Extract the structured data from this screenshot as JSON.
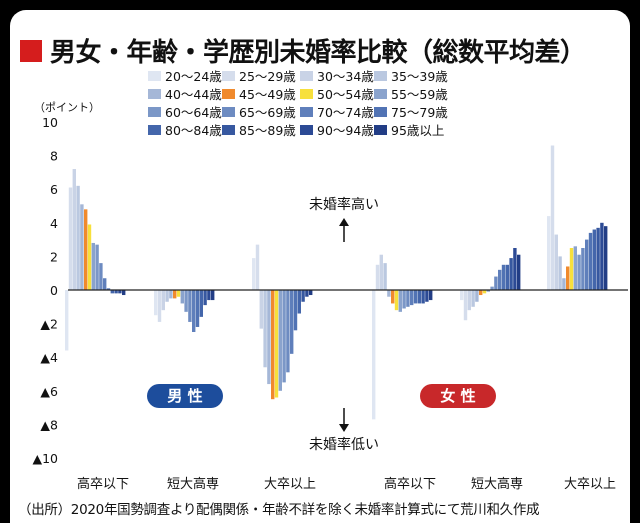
{
  "title": "男女・年齢・学歴別未婚率比較（総数平均差）",
  "source": "（出所）2020年国勢調査より配偶関係・年齢不詳を除く未婚率計算式にて荒川和久作成",
  "chart_data": {
    "type": "bar",
    "unit_label": "（ポイント）",
    "ylim": [
      -10,
      10
    ],
    "y_ticks": [
      {
        "value": 10,
        "label": "10"
      },
      {
        "value": 8,
        "label": "8"
      },
      {
        "value": 6,
        "label": "6"
      },
      {
        "value": 4,
        "label": "4"
      },
      {
        "value": 2,
        "label": "2"
      },
      {
        "value": 0,
        "label": "0"
      },
      {
        "value": -2,
        "label": "▲2"
      },
      {
        "value": -4,
        "label": "▲4"
      },
      {
        "value": -6,
        "label": "▲6"
      },
      {
        "value": -8,
        "label": "▲8"
      },
      {
        "value": -10,
        "label": "▲10"
      }
    ],
    "grid": false,
    "legend_position": "top",
    "annotations": {
      "high": "未婚率高い",
      "low": "未婚率低い"
    },
    "groups": [
      {
        "gender": "男 性",
        "gender_color": "#1d4d9c",
        "categories": [
          "高卒以下",
          "短大高専",
          "大卒以上"
        ]
      },
      {
        "gender": "女 性",
        "gender_color": "#c8282a",
        "categories": [
          "高卒以下",
          "短大高専",
          "大卒以上"
        ]
      }
    ],
    "series": [
      {
        "name": "20～24歳",
        "color": "#dfe6f2"
      },
      {
        "name": "25～29歳",
        "color": "#d5ddec"
      },
      {
        "name": "30～34歳",
        "color": "#c9d3e6"
      },
      {
        "name": "35～39歳",
        "color": "#bac8e0"
      },
      {
        "name": "40～44歳",
        "color": "#a5b7d7"
      },
      {
        "name": "45～49歳",
        "color": "#f08a2d"
      },
      {
        "name": "50～54歳",
        "color": "#f7e03c"
      },
      {
        "name": "55～59歳",
        "color": "#8aa3cd"
      },
      {
        "name": "60～64歳",
        "color": "#7b97c7"
      },
      {
        "name": "65～69歳",
        "color": "#6d8bc1"
      },
      {
        "name": "70～74歳",
        "color": "#5f7fbb"
      },
      {
        "name": "75～79歳",
        "color": "#5173b4"
      },
      {
        "name": "80～84歳",
        "color": "#4466ab"
      },
      {
        "name": "85～89歳",
        "color": "#3758a0"
      },
      {
        "name": "90～94歳",
        "color": "#2c4a95"
      },
      {
        "name": "95歳以上",
        "color": "#223d85"
      }
    ],
    "values": [
      [
        -3.6,
        6.1,
        7.2,
        6.2,
        5.1,
        4.8,
        3.9,
        2.8,
        2.7,
        1.6,
        0.7,
        0.1,
        -0.2,
        -0.2,
        -0.2,
        -0.3
      ],
      [
        -1.5,
        -1.9,
        -1.2,
        -0.7,
        -0.5,
        -0.5,
        -0.4,
        -0.8,
        -1.3,
        -1.9,
        -2.5,
        -2.2,
        -1.6,
        -0.9,
        -0.6,
        -0.6
      ],
      [
        1.9,
        2.7,
        -2.3,
        -4.6,
        -5.6,
        -6.5,
        -6.4,
        -6.0,
        -5.5,
        -4.9,
        -3.8,
        -2.4,
        -1.4,
        -0.7,
        -0.4,
        -0.3
      ],
      [
        -7.7,
        1.5,
        2.1,
        1.6,
        -0.4,
        -0.8,
        -1.2,
        -1.3,
        -1.1,
        -1.0,
        -0.9,
        -0.8,
        -0.8,
        -0.8,
        -0.7,
        -0.6
      ],
      [
        -0.6,
        -1.8,
        -1.2,
        -1.0,
        -0.7,
        -0.3,
        -0.2,
        -0.1,
        0.2,
        0.8,
        1.2,
        1.5,
        1.5,
        1.9,
        2.5,
        2.1
      ],
      [
        4.4,
        8.6,
        3.3,
        2.0,
        0.7,
        1.4,
        2.5,
        2.6,
        2.1,
        2.5,
        3.0,
        3.4,
        3.6,
        3.7,
        4.0,
        3.8
      ]
    ]
  }
}
